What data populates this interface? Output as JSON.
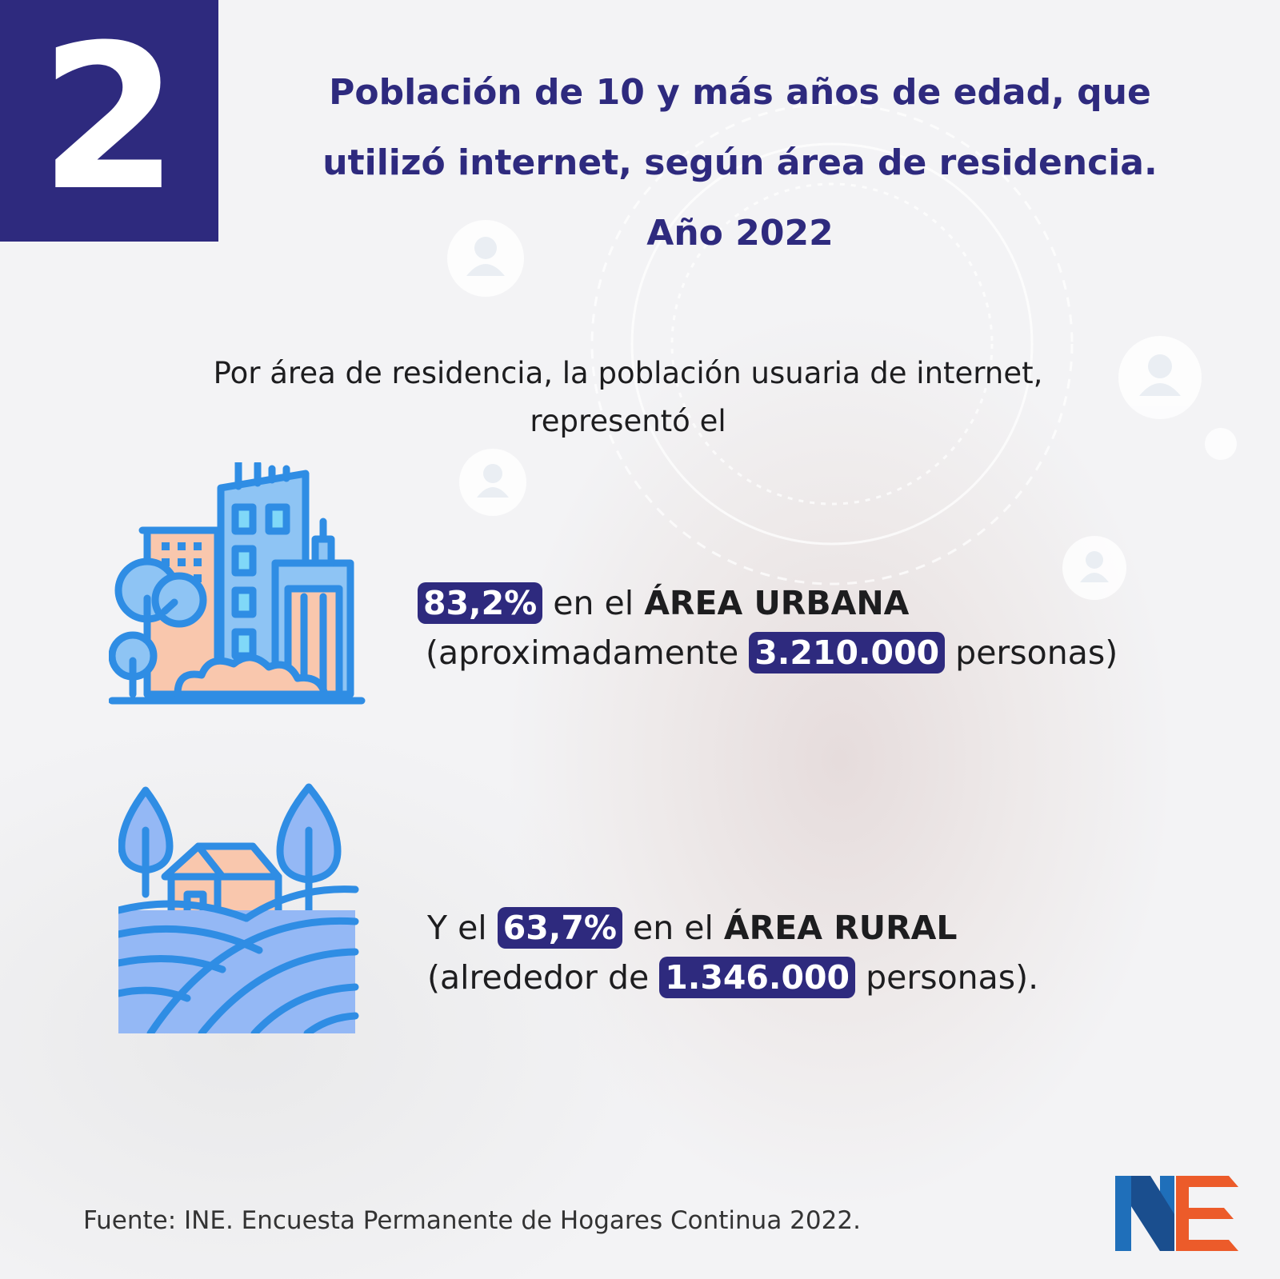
{
  "header": {
    "number": "2",
    "title_lines": [
      "Población de 10 y más años de edad, que",
      "utilizó internet, según área de residencia.",
      "Año 2022"
    ]
  },
  "intro": {
    "lines": [
      "Por área de residencia, la población usuaria de internet,",
      "representó el"
    ]
  },
  "urban": {
    "percent": "83,2%",
    "text_after_percent": " en el ",
    "area_label": "ÁREA URBANA",
    "line2_prefix": "(aproximadamente ",
    "count": "3.210.000",
    "line2_suffix": " personas)",
    "icon": "city-buildings-icon"
  },
  "rural": {
    "line1_prefix": "Y el ",
    "percent": "63,7%",
    "text_after_percent": " en el ",
    "area_label": "ÁREA RURAL",
    "line2_prefix": "(alrededor de ",
    "count": "1.346.000",
    "line2_suffix": " personas).",
    "icon": "rural-house-icon"
  },
  "footer": {
    "source": "Fuente: INE. Encuesta Permanente de Hogares Continua 2022.",
    "logo": "ine-logo"
  },
  "colors": {
    "brand_navy": "#2e2a7e",
    "icon_blue": "#2f8de4",
    "icon_peach": "#f9c7ad",
    "icon_light_blue": "#94b8f5",
    "logo_blue": "#1f6fba",
    "logo_orange": "#ec5b2a"
  }
}
